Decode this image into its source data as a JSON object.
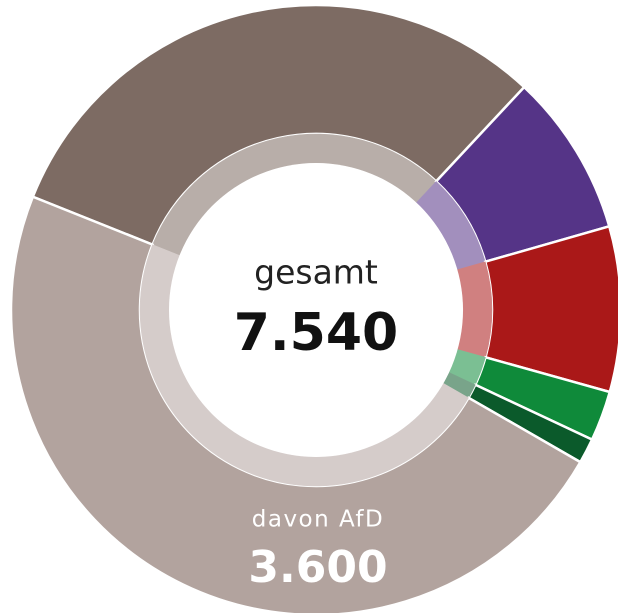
{
  "chart_data": {
    "type": "donut",
    "values": [
      2330,
      650,
      660,
      200,
      100,
      3600
    ],
    "value_labels": [
      null,
      null,
      null,
      null,
      null,
      "3.600"
    ],
    "colors": [
      "#7d6b63",
      "#553487",
      "#aa1818",
      "#0f8a3a",
      "#0b5a2b",
      "#b2a39e"
    ],
    "center_label": "gesamt",
    "total": 7540,
    "total_label": "7.540",
    "annotation": "davon AfD"
  }
}
